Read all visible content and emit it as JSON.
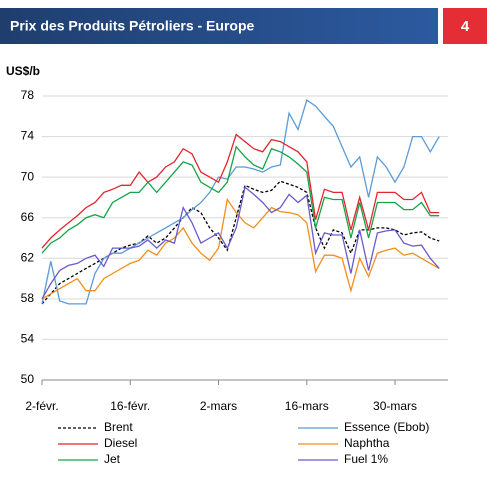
{
  "header": {
    "title": "Prix des Produits Pétroliers - Europe",
    "page_number": "4"
  },
  "chart_data": {
    "type": "line",
    "ylabel": "US$/b",
    "categories": [
      "2-févr.",
      null,
      null,
      null,
      null,
      null,
      null,
      null,
      null,
      null,
      "16-févr.",
      null,
      null,
      null,
      null,
      null,
      null,
      null,
      null,
      null,
      "2-mars",
      null,
      null,
      null,
      null,
      null,
      null,
      null,
      null,
      null,
      "16-mars",
      null,
      null,
      null,
      null,
      null,
      null,
      null,
      null,
      null,
      "30-mars",
      null,
      null,
      null,
      null,
      null
    ],
    "ylim": [
      50,
      78
    ],
    "yticks": [
      50,
      54,
      58,
      62,
      66,
      70,
      74,
      78
    ],
    "grid": true,
    "series": [
      {
        "name": "Brent",
        "color": "#000000",
        "dash": true,
        "values": [
          57.5,
          58.5,
          59.5,
          60,
          60.5,
          61,
          61.5,
          62,
          62.5,
          63,
          63.3,
          63.5,
          64.2,
          63.5,
          64,
          65,
          66,
          67,
          66.5,
          65,
          64,
          62.8,
          66,
          69.2,
          68.8,
          68.5,
          68.7,
          69.6,
          69.3,
          69,
          68.5,
          65,
          63,
          64.8,
          64.5,
          62.5,
          64.8,
          64.8,
          65,
          65,
          64.8,
          64.3,
          64.5,
          64.6,
          64,
          63.7
        ]
      },
      {
        "name": "Essence (Ebob)",
        "color": "#5b9bd5",
        "values": [
          57.5,
          61.7,
          57.8,
          57.5,
          57.5,
          57.5,
          60.5,
          62,
          62.5,
          62.5,
          63,
          63.5,
          64,
          64.5,
          65,
          65.5,
          66,
          66.8,
          67.5,
          68.5,
          70,
          69.8,
          71,
          71,
          70.8,
          70.5,
          71,
          71.2,
          76.3,
          74.7,
          77.6,
          77,
          76,
          75,
          73,
          71,
          72,
          68,
          72,
          71,
          69.5,
          71,
          74,
          74,
          72.5,
          74
        ]
      },
      {
        "name": "Diesel",
        "color": "#e3262d",
        "values": [
          63,
          64,
          64.8,
          65.5,
          66.2,
          67,
          67.5,
          68.5,
          68.8,
          69.2,
          69.2,
          70.5,
          69.5,
          70,
          71,
          71.5,
          72.8,
          72.3,
          70.5,
          70,
          69.5,
          71.5,
          74.2,
          73.5,
          72.8,
          72.5,
          73.7,
          73.5,
          73,
          72.5,
          71.5,
          65.8,
          68.8,
          68.5,
          68.5,
          64.8,
          68,
          64.8,
          68.5,
          68.5,
          68.5,
          67.8,
          67.8,
          68.5,
          66.5,
          66.5
        ]
      },
      {
        "name": "Naphtha",
        "color": "#f28e1c",
        "values": [
          58,
          58.5,
          59,
          59.5,
          60,
          58.8,
          58.8,
          60,
          60.5,
          61,
          61.5,
          61.8,
          62.8,
          62.3,
          63.5,
          64,
          65,
          63.5,
          62.5,
          61.8,
          63,
          67.8,
          66.5,
          65.5,
          65,
          66,
          67,
          66.6,
          66.5,
          66.3,
          65.5,
          60.7,
          62.3,
          62.3,
          62,
          58.8,
          62,
          60.2,
          62.5,
          62.8,
          63,
          62.3,
          62.5,
          62,
          61.5,
          61
        ]
      },
      {
        "name": "Jet",
        "color": "#17a34a",
        "values": [
          62.5,
          63.5,
          64,
          64.8,
          65.3,
          66,
          66.3,
          66,
          67.5,
          68,
          68.5,
          68.5,
          69.5,
          68.5,
          69.5,
          70.5,
          71.5,
          71.2,
          69.5,
          69,
          68.5,
          69.5,
          73,
          72,
          71.2,
          70.8,
          72.8,
          72.5,
          72,
          71.3,
          70.5,
          65,
          68,
          67.8,
          67.8,
          64,
          67.5,
          64,
          67.5,
          67.5,
          67.5,
          66.8,
          66.8,
          67.5,
          66.2,
          66.2
        ]
      },
      {
        "name": "Fuel 1%",
        "color": "#6a5acd",
        "values": [
          58,
          59.5,
          60.8,
          61.3,
          61.5,
          62,
          62.3,
          61.2,
          63,
          63,
          63,
          63.2,
          63.8,
          63,
          63.8,
          63.5,
          67,
          65.5,
          63.5,
          64,
          64.5,
          63,
          65,
          69,
          68.3,
          67.5,
          66.5,
          67,
          68.3,
          67.5,
          68.2,
          62.5,
          64.5,
          64.3,
          64.3,
          60.5,
          64.8,
          60.8,
          64.5,
          64.7,
          64.8,
          63.5,
          63.2,
          63.3,
          62,
          61
        ]
      }
    ]
  }
}
